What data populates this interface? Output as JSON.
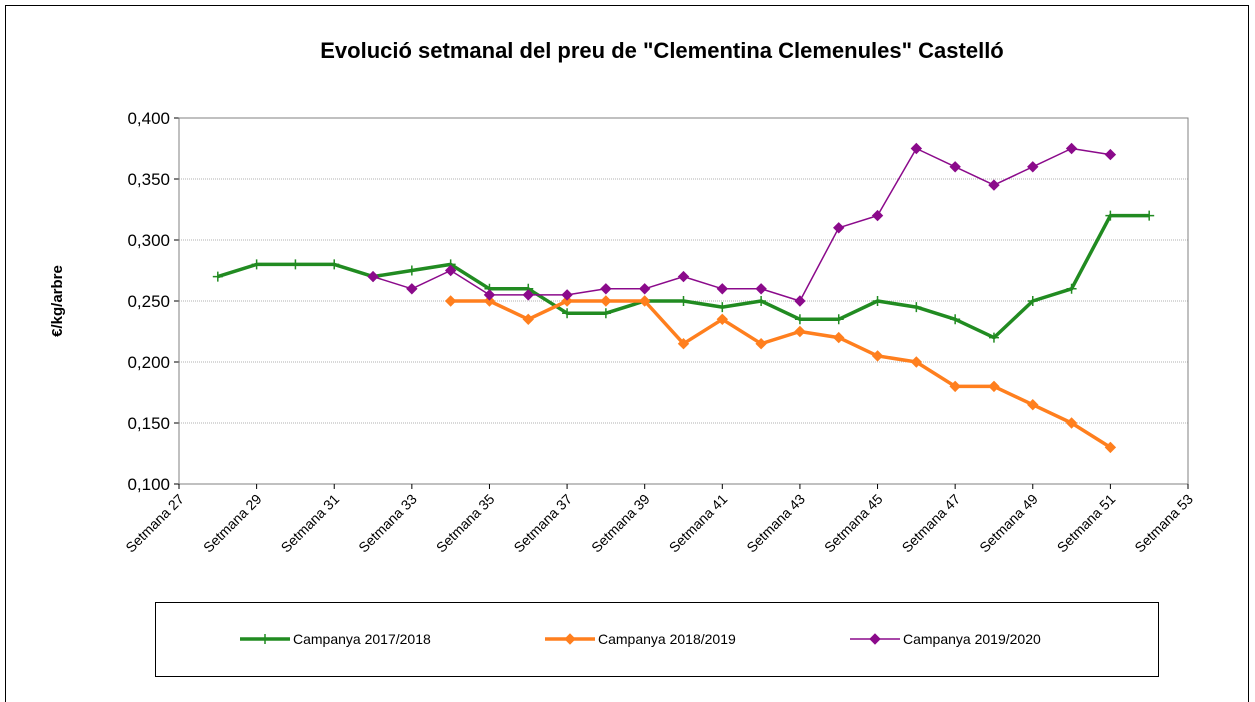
{
  "chart_data": {
    "type": "line",
    "title": "Evolució setmanal del preu de \"Clementina Clemenules\" Castelló",
    "y_label": "€/kg/arbre",
    "categories": [
      "Setmana 27",
      null,
      "Setmana 29",
      null,
      "Setmana 31",
      null,
      "Setmana 33",
      null,
      "Setmana 35",
      null,
      "Setmana 37",
      null,
      "Setmana 39",
      null,
      "Setmana 41",
      null,
      "Setmana 43",
      null,
      "Setmana 45",
      null,
      "Setmana 47",
      null,
      "Setmana 49",
      null,
      "Setmana 51",
      null,
      "Setmana 53"
    ],
    "series": [
      {
        "name": "Campanya 2017/2018",
        "color": "#218b21",
        "marker": "plus",
        "values": [
          null,
          0.27,
          0.28,
          0.28,
          0.28,
          0.27,
          0.275,
          0.28,
          0.26,
          0.26,
          0.24,
          0.24,
          0.25,
          0.25,
          0.245,
          0.25,
          0.235,
          0.235,
          0.25,
          0.245,
          0.235,
          0.22,
          0.25,
          0.26,
          0.32,
          0.32,
          null
        ]
      },
      {
        "name": "Campanya 2018/2019",
        "color": "#ff7f1e",
        "marker": "diamond",
        "values": [
          null,
          null,
          null,
          null,
          null,
          null,
          null,
          0.25,
          0.25,
          0.235,
          0.25,
          0.25,
          0.25,
          0.215,
          0.235,
          0.215,
          0.225,
          0.22,
          0.205,
          0.2,
          0.18,
          0.18,
          0.165,
          0.15,
          0.13,
          null,
          null
        ]
      },
      {
        "name": "Campanya 2019/2020",
        "color": "#8b0a8b",
        "marker": "diamond",
        "values": [
          null,
          null,
          null,
          null,
          null,
          0.27,
          0.26,
          0.275,
          0.255,
          0.255,
          0.255,
          0.26,
          0.26,
          0.27,
          0.26,
          0.26,
          0.25,
          0.31,
          0.32,
          0.375,
          0.36,
          0.345,
          0.36,
          0.375,
          0.37,
          null,
          null
        ]
      }
    ],
    "ylim": [
      0.1,
      0.4
    ],
    "yticks": [
      {
        "value": 0.1,
        "label": "0,100"
      },
      {
        "value": 0.15,
        "label": "0,150"
      },
      {
        "value": 0.2,
        "label": "0,200"
      },
      {
        "value": 0.25,
        "label": "0,250"
      },
      {
        "value": 0.3,
        "label": "0,300"
      },
      {
        "value": 0.35,
        "label": "0,350"
      },
      {
        "value": 0.4,
        "label": "0,400"
      }
    ],
    "grid": true,
    "legend": "bottom"
  }
}
